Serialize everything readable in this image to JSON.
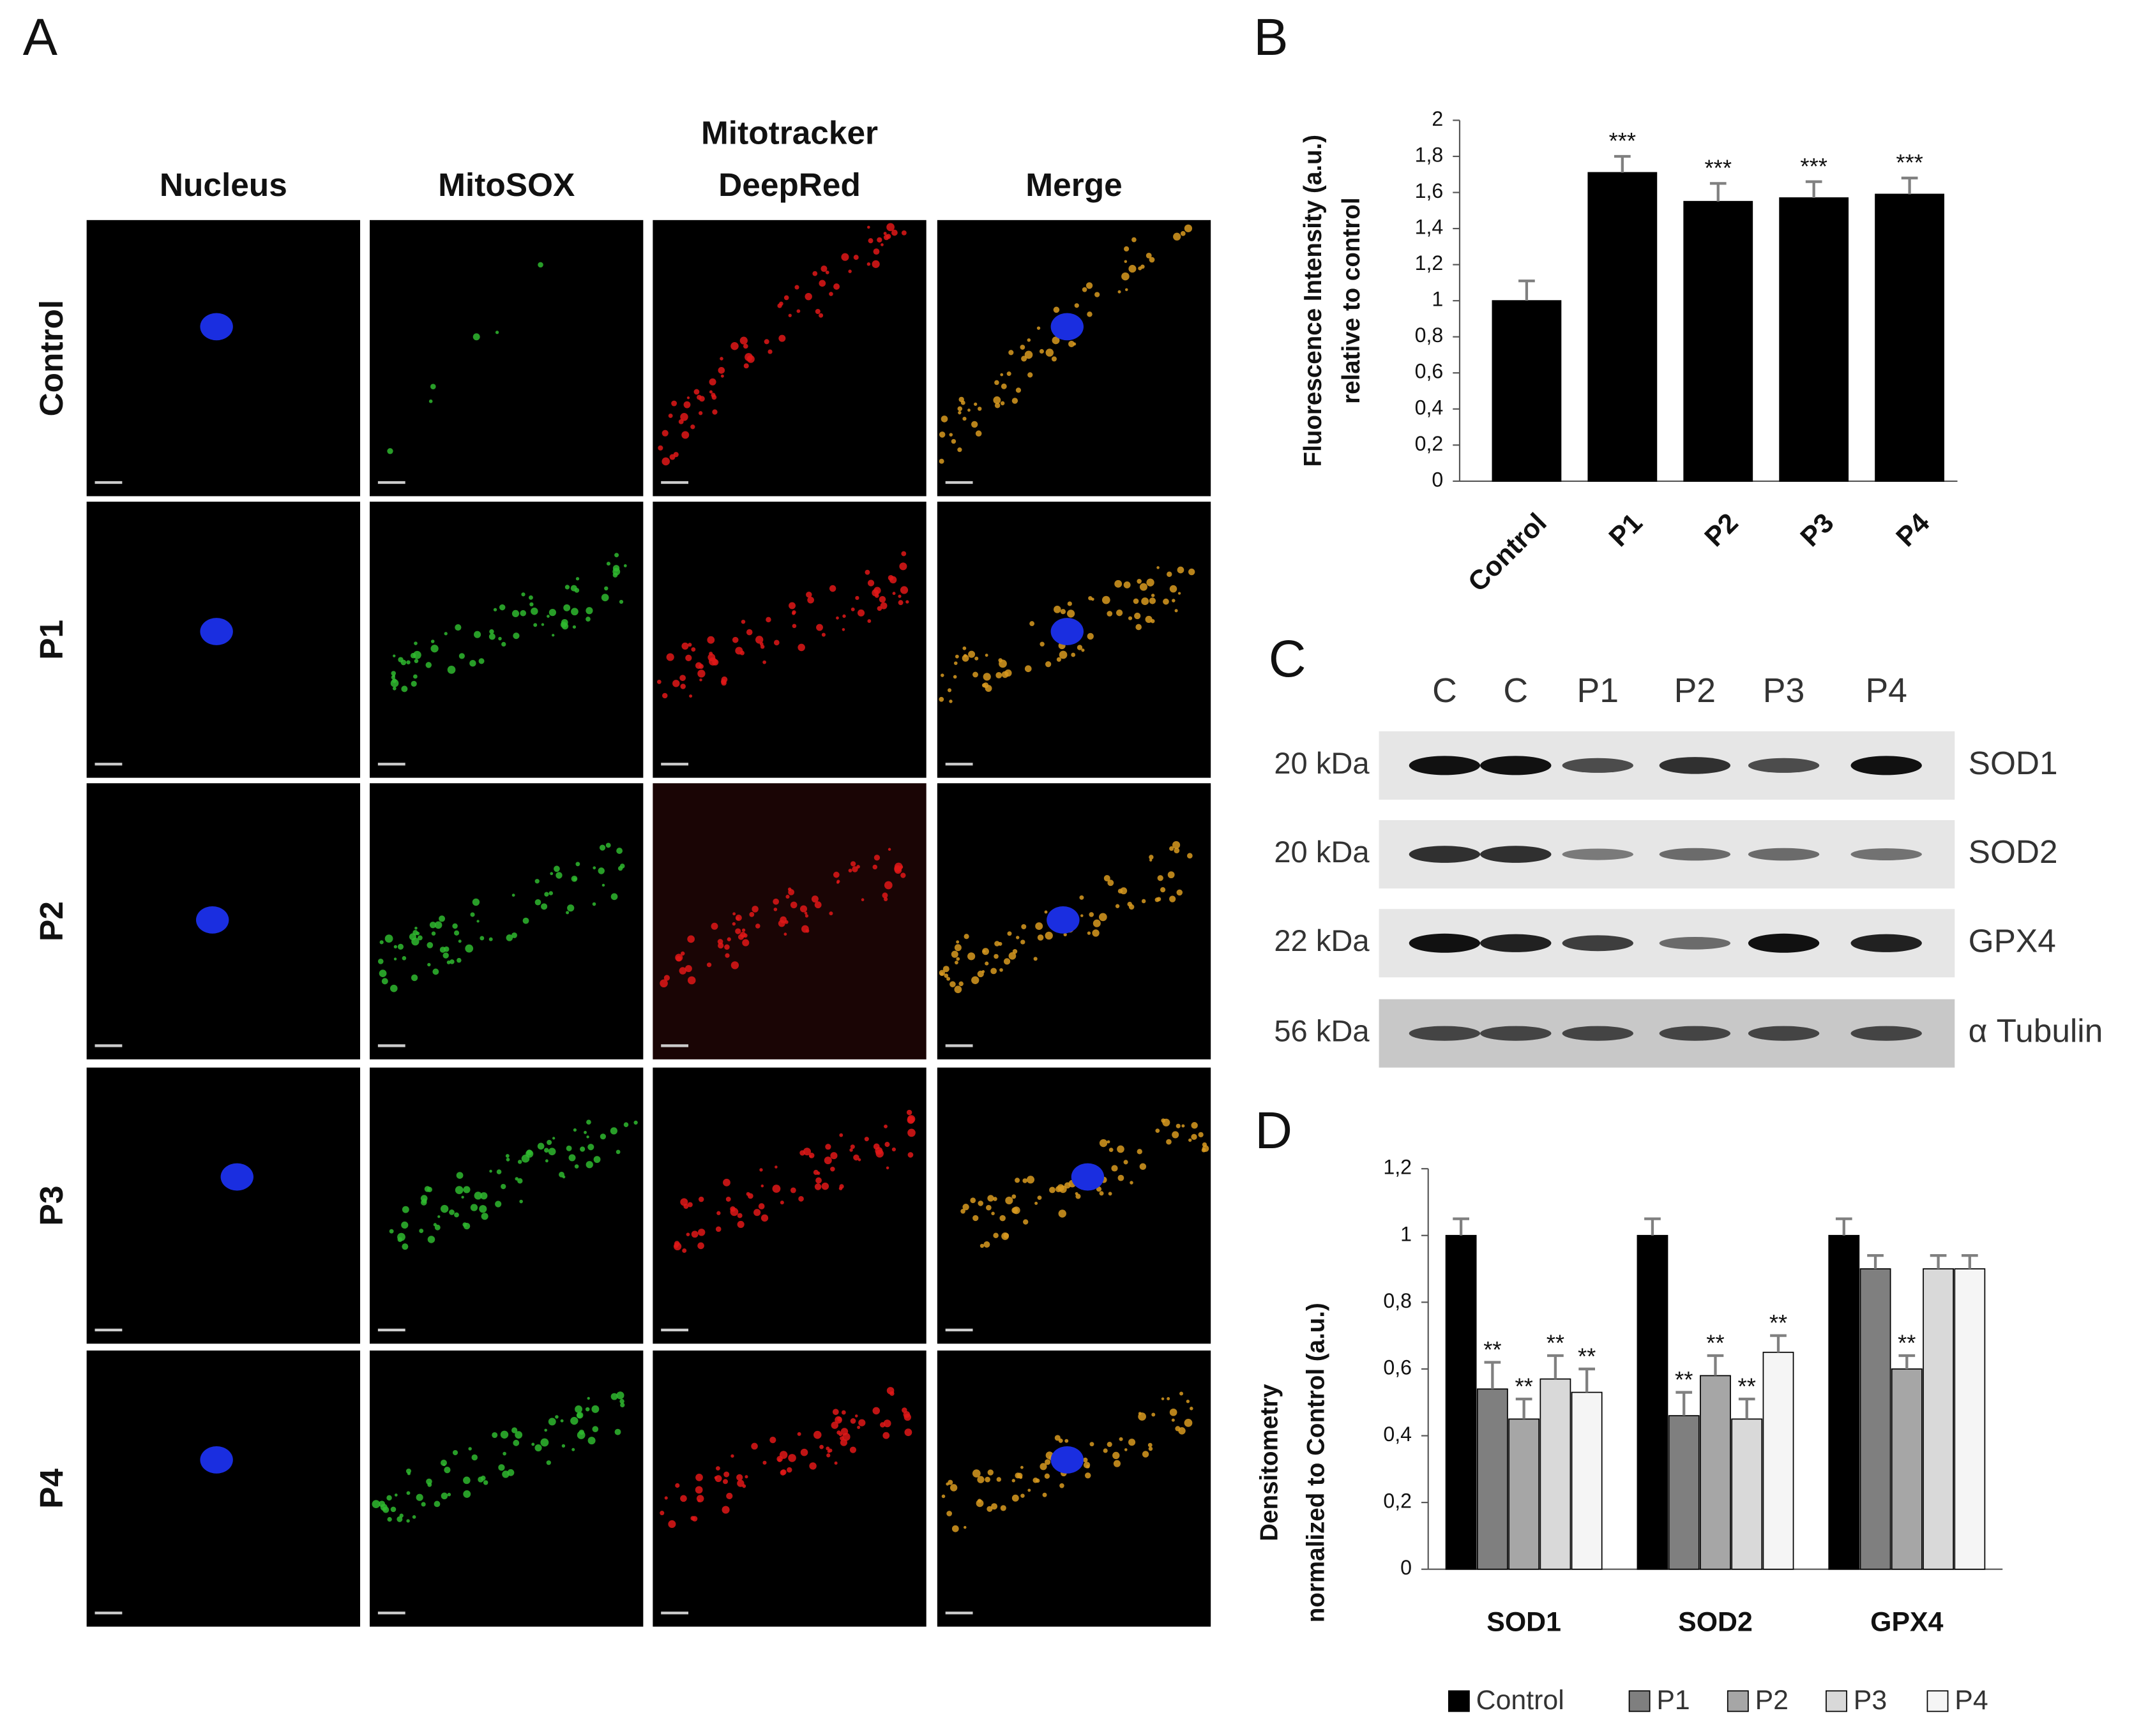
{
  "panel_labels": [
    "A",
    "B",
    "C",
    "D"
  ],
  "microscopy": {
    "columns": [
      [
        "Nucleus"
      ],
      [
        "MitoSOX"
      ],
      [
        "Mitotracker",
        "DeepRed"
      ],
      [
        "Merge"
      ]
    ],
    "rows": [
      "Control",
      "P1",
      "P2",
      "P3",
      "P4"
    ]
  },
  "western_blot": {
    "lanes": [
      "C",
      "C",
      "P1",
      "P2",
      "P3",
      "P4"
    ],
    "bands": [
      {
        "size": "20 kDa",
        "protein": "SOD1"
      },
      {
        "size": "20 kDa",
        "protein": "SOD2"
      },
      {
        "size": "22 kDa",
        "protein": "GPX4"
      },
      {
        "size": "56 kDa",
        "protein": "α Tubulin"
      }
    ]
  },
  "chart_data": [
    {
      "type": "bar",
      "ylabel": [
        "Fluorescence Intensity (a.u.)",
        "relative to control"
      ],
      "categories": [
        "Control",
        "P1",
        "P2",
        "P3",
        "P4"
      ],
      "values": [
        1,
        1.71,
        1.55,
        1.57,
        1.59
      ],
      "errors": [
        0.11,
        0.09,
        0.1,
        0.09,
        0.09
      ],
      "annotations": [
        null,
        "***",
        "***",
        "***",
        "***"
      ],
      "color": "#000000",
      "ylim": [
        0,
        2
      ],
      "yticks": [
        0,
        {
          "value": 0.2,
          "label": "0,2"
        },
        {
          "value": 0.4,
          "label": "0,4"
        },
        {
          "value": 0.6,
          "label": "0,6"
        },
        {
          "value": 0.8,
          "label": "0,8"
        },
        1,
        {
          "value": 1.2,
          "label": "1,2"
        },
        {
          "value": 1.4,
          "label": "1,4"
        },
        {
          "value": 1.6,
          "label": "1,6"
        },
        {
          "value": 1.8,
          "label": "1,8"
        },
        2
      ],
      "grid": false
    },
    {
      "type": "bar",
      "ylabel": [
        "Densitometry",
        "normalized to Control (a.u.)"
      ],
      "categories": [
        "SOD1",
        "SOD2",
        "GPX4"
      ],
      "series": [
        {
          "name": "Control",
          "color": "#000000",
          "values": [
            1,
            1,
            1
          ],
          "errors": [
            0.05,
            0.05,
            0.05
          ],
          "annotations": [
            null,
            null,
            null
          ]
        },
        {
          "name": "P1",
          "color": "#7f7f7f",
          "values": [
            0.54,
            0.46,
            0.9
          ],
          "errors": [
            0.08,
            0.07,
            0.04
          ],
          "annotations": [
            "**",
            "**",
            null
          ]
        },
        {
          "name": "P2",
          "color": "#a6a6a6",
          "values": [
            0.45,
            0.58,
            0.6
          ],
          "errors": [
            0.06,
            0.06,
            0.04
          ],
          "annotations": [
            "**",
            "**",
            "**"
          ]
        },
        {
          "name": "P3",
          "color": "#d9d9d9",
          "values": [
            0.57,
            0.45,
            0.9
          ],
          "errors": [
            0.07,
            0.06,
            0.04
          ],
          "annotations": [
            "**",
            "**",
            null
          ]
        },
        {
          "name": "P4",
          "color": "#f5f5f5",
          "values": [
            0.53,
            0.65,
            0.9
          ],
          "errors": [
            0.07,
            0.05,
            0.04
          ],
          "annotations": [
            "**",
            "**",
            null
          ]
        }
      ],
      "ylim": [
        0,
        1.2
      ],
      "yticks": [
        0,
        {
          "value": 0.2,
          "label": "0,2"
        },
        {
          "value": 0.4,
          "label": "0,4"
        },
        {
          "value": 0.6,
          "label": "0,6"
        },
        {
          "value": 0.8,
          "label": "0,8"
        },
        1,
        {
          "value": 1.2,
          "label": "1,2"
        }
      ],
      "grid": false,
      "legend": "bottom"
    }
  ]
}
